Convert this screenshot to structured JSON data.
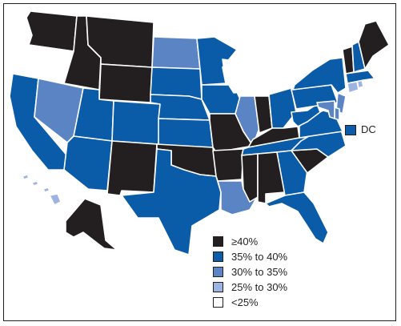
{
  "colors": {
    "ge40": "#231f20",
    "c35to40": "#0a5ca8",
    "c30to35": "#5b84c4",
    "c25to30": "#9db3e0",
    "lt25": "#ffffff",
    "border": "#ffffff",
    "frame": "#231f20"
  },
  "dc": {
    "label": "DC",
    "category": "c35to40"
  },
  "legend": {
    "items": [
      {
        "label": "≥40%",
        "category": "ge40"
      },
      {
        "label": "35% to 40%",
        "category": "c35to40"
      },
      {
        "label": "30% to 35%",
        "category": "c30to35"
      },
      {
        "label": "25% to 30%",
        "category": "c25to30"
      },
      {
        "label": "<25%",
        "category": "lt25"
      }
    ]
  },
  "states": {
    "WA": "ge40",
    "OR": "lt25",
    "CA": "c35to40",
    "NV": "c30to35",
    "ID": "ge40",
    "MT": "ge40",
    "WY": "ge40",
    "UT": "c35to40",
    "AZ": "c35to40",
    "CO": "c35to40",
    "NM": "ge40",
    "ND": "c30to35",
    "SD": "c35to40",
    "NE": "c35to40",
    "KS": "c35to40",
    "OK": "ge40",
    "TX": "c35to40",
    "MN": "c35to40",
    "IA": "c35to40",
    "MO": "ge40",
    "AR": "ge40",
    "LA": "c30to35",
    "WI": "lt25",
    "MI": "lt25",
    "IL": "c30to35",
    "IN": "ge40",
    "OH": "c35to40",
    "KY": "ge40",
    "TN": "c35to40",
    "MS": "ge40",
    "AL": "ge40",
    "GA": "c35to40",
    "FL": "c35to40",
    "SC": "ge40",
    "NC": "c35to40",
    "VA": "c35to40",
    "WV": "c35to40",
    "PA": "c35to40",
    "NY": "c35to40",
    "VT": "ge40",
    "NH": "c35to40",
    "ME": "ge40",
    "MA": "c35to40",
    "RI": "c25to30",
    "CT": "c25to30",
    "NJ": "c30to35",
    "DE": "c30to35",
    "MD": "c30to35",
    "AK": "ge40",
    "HI": "c25to30"
  }
}
